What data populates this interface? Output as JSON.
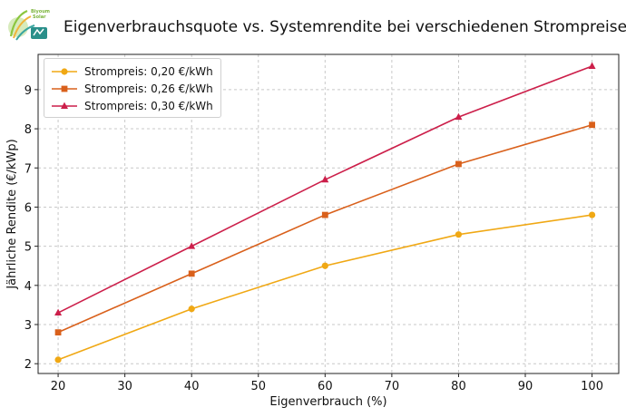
{
  "logo": {
    "text_line1": "Biyoum",
    "text_line2": "Solar"
  },
  "chart_data": {
    "type": "line",
    "title": "Eigenverbrauchsquote vs. Systemrendite bei verschiedenen Strompreisen",
    "xlabel": "Eigenverbrauch (%)",
    "ylabel": "Jährliche Rendite (€/kWp)",
    "x": [
      20,
      40,
      60,
      80,
      100
    ],
    "xlim": [
      17,
      104
    ],
    "ylim": [
      1.75,
      9.9
    ],
    "xticks": [
      20,
      30,
      40,
      50,
      60,
      70,
      80,
      90,
      100
    ],
    "yticks": [
      2,
      3,
      4,
      5,
      6,
      7,
      8,
      9
    ],
    "grid": true,
    "legend_position": "top-left",
    "series": [
      {
        "name": "Strompreis: 0,20 €/kWh",
        "color": "#f0a814",
        "marker": "circle",
        "values": [
          2.1,
          3.4,
          4.5,
          5.3,
          5.8
        ]
      },
      {
        "name": "Strompreis: 0,26 €/kWh",
        "color": "#d9601b",
        "marker": "square",
        "values": [
          2.8,
          4.3,
          5.8,
          7.1,
          8.1
        ]
      },
      {
        "name": "Strompreis: 0,30 €/kWh",
        "color": "#cc1f4a",
        "marker": "triangle",
        "values": [
          3.3,
          5.0,
          6.7,
          8.3,
          9.6
        ]
      }
    ]
  }
}
